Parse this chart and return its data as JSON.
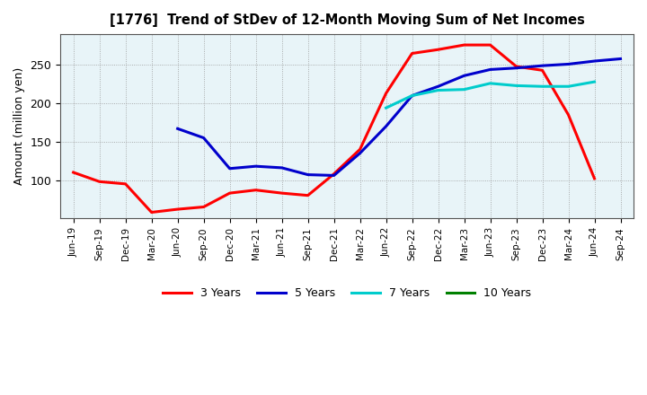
{
  "title": "[1776]  Trend of StDev of 12-Month Moving Sum of Net Incomes",
  "ylabel": "Amount (million yen)",
  "x_labels": [
    "Jun-19",
    "Sep-19",
    "Dec-19",
    "Mar-20",
    "Jun-20",
    "Sep-20",
    "Dec-20",
    "Mar-21",
    "Jun-21",
    "Sep-21",
    "Dec-21",
    "Mar-22",
    "Jun-22",
    "Sep-22",
    "Dec-22",
    "Mar-23",
    "Jun-23",
    "Sep-23",
    "Dec-23",
    "Mar-24",
    "Jun-24",
    "Sep-24"
  ],
  "ylim": [
    50,
    290
  ],
  "yticks": [
    100,
    150,
    200,
    250
  ],
  "series": {
    "3 Years": {
      "color": "#FF0000",
      "values": [
        110,
        98,
        95,
        58,
        62,
        65,
        83,
        87,
        83,
        80,
        108,
        140,
        213,
        265,
        270,
        276,
        276,
        248,
        243,
        185,
        102,
        null
      ]
    },
    "5 Years": {
      "color": "#0000CC",
      "values": [
        null,
        null,
        null,
        null,
        167,
        155,
        115,
        118,
        116,
        107,
        106,
        135,
        170,
        210,
        222,
        236,
        244,
        246,
        249,
        251,
        255,
        258
      ]
    },
    "7 Years": {
      "color": "#00CCCC",
      "values": [
        null,
        null,
        null,
        null,
        null,
        null,
        null,
        null,
        null,
        null,
        null,
        null,
        194,
        210,
        217,
        218,
        226,
        223,
        222,
        222,
        228,
        null
      ]
    },
    "10 Years": {
      "color": "#008000",
      "values": [
        null,
        null,
        null,
        null,
        null,
        null,
        null,
        null,
        null,
        null,
        null,
        null,
        null,
        null,
        null,
        null,
        null,
        null,
        null,
        null,
        null,
        null
      ]
    }
  },
  "legend_order": [
    "3 Years",
    "5 Years",
    "7 Years",
    "10 Years"
  ],
  "linewidth": 2.2,
  "grid_color": "#999999",
  "background_color": "#E8F4F8"
}
